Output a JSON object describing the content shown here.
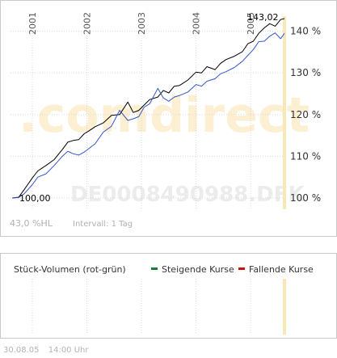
{
  "chart_data": [
    {
      "type": "line",
      "x_axis_labels": [
        "2001",
        "2002",
        "2003",
        "2004",
        "2005"
      ],
      "y_axis_labels": [
        "140 %",
        "130 %",
        "120 %",
        "110 %",
        "100 %"
      ],
      "ylim": [
        97,
        145
      ],
      "xlim": [
        2000.6,
        2005.65
      ],
      "grid": true,
      "watermark": ".comdirect",
      "ticker": "DE0008490988.DFK",
      "start_label": "100,00",
      "end_label": "143,02",
      "footer_left": "43,0 %HL",
      "interval": "Intervall: 1 Tag",
      "series": [
        {
          "color": "#000000",
          "x": [
            2000.63,
            2000.75,
            2000.85,
            2001.0,
            2001.1,
            2001.25,
            2001.4,
            2001.55,
            2001.65,
            2001.75,
            2001.85,
            2001.95,
            2002.05,
            2002.15,
            2002.3,
            2002.45,
            2002.6,
            2002.75,
            2002.85,
            2002.95,
            2003.05,
            2003.15,
            2003.3,
            2003.4,
            2003.5,
            2003.6,
            2003.7,
            2003.85,
            2004.0,
            2004.1,
            2004.2,
            2004.35,
            2004.45,
            2004.55,
            2004.7,
            2004.85,
            2004.95,
            2005.05,
            2005.15,
            2005.25,
            2005.35,
            2005.45,
            2005.55,
            2005.62
          ],
          "values": [
            100.0,
            100.2,
            102.0,
            104.8,
            106.5,
            107.8,
            109.2,
            111.6,
            113.4,
            113.8,
            114.0,
            115.4,
            116.2,
            117.1,
            118.0,
            119.8,
            120.0,
            123.0,
            120.5,
            121.0,
            122.3,
            123.6,
            124.2,
            125.8,
            125.2,
            126.8,
            127.0,
            128.3,
            130.2,
            130.0,
            131.5,
            130.8,
            132.3,
            133.2,
            134.0,
            135.1,
            137.0,
            137.6,
            139.5,
            140.8,
            141.8,
            141.2,
            142.8,
            143.02
          ]
        },
        {
          "color": "#3355cc",
          "x": [
            2000.63,
            2000.75,
            2000.85,
            2001.0,
            2001.1,
            2001.25,
            2001.4,
            2001.55,
            2001.65,
            2001.75,
            2001.85,
            2001.95,
            2002.05,
            2002.15,
            2002.3,
            2002.45,
            2002.6,
            2002.75,
            2002.85,
            2002.95,
            2003.05,
            2003.15,
            2003.3,
            2003.4,
            2003.5,
            2003.6,
            2003.7,
            2003.85,
            2004.0,
            2004.1,
            2004.2,
            2004.35,
            2004.45,
            2004.55,
            2004.7,
            2004.85,
            2004.95,
            2005.05,
            2005.15,
            2005.25,
            2005.35,
            2005.45,
            2005.55,
            2005.62
          ],
          "values": [
            100.0,
            100.1,
            101.0,
            103.2,
            105.0,
            105.8,
            107.8,
            110.0,
            111.2,
            110.6,
            110.3,
            111.0,
            112.0,
            113.0,
            115.8,
            117.2,
            121.0,
            118.6,
            119.0,
            119.5,
            121.8,
            122.6,
            126.3,
            124.0,
            123.2,
            124.2,
            124.6,
            125.4,
            127.2,
            126.8,
            128.0,
            128.6,
            129.8,
            130.3,
            131.3,
            132.8,
            134.2,
            135.6,
            137.5,
            137.6,
            138.8,
            139.6,
            138.2,
            139.5
          ]
        }
      ]
    },
    {
      "type": "bar",
      "title": "Stück-Volumen (rot-grün)",
      "legend": [
        {
          "label": "Steigende Kurse",
          "color": "#1a7a3a"
        },
        {
          "label": "Fallende Kurse",
          "color": "#cc1111"
        }
      ],
      "grid": true,
      "values": []
    }
  ],
  "footer": {
    "date": "30.08.05",
    "time": "14:00 Uhr"
  }
}
